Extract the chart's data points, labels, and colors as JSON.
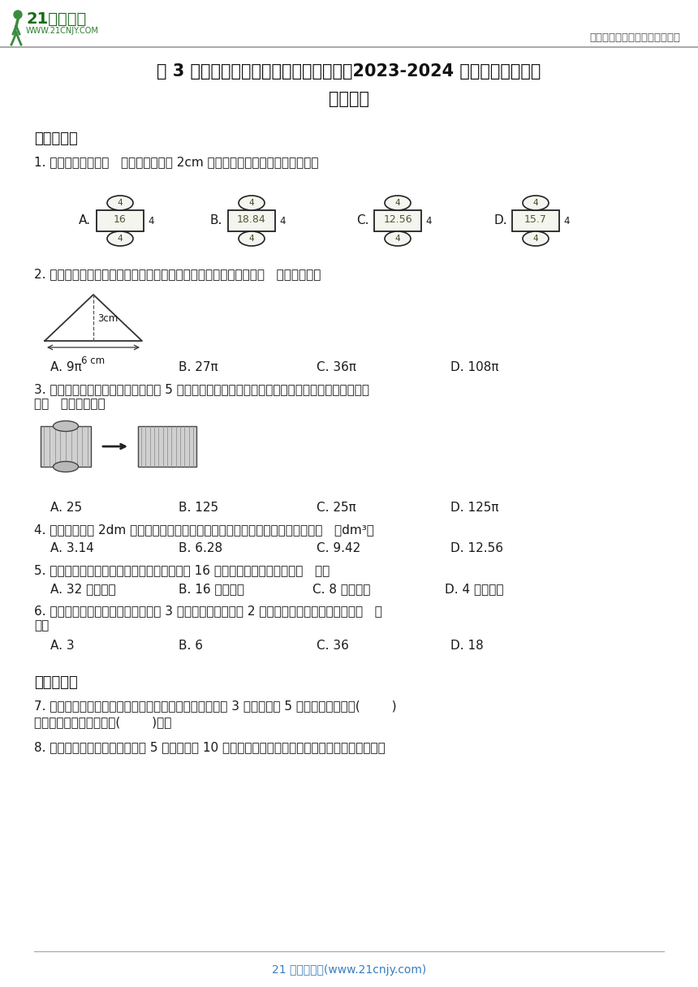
{
  "bg_color": "#ffffff",
  "header_right": "中小学教育资源及组卷应用平台",
  "title_line1": "第 3 单元圆柱与圆锥必考卷（单元测试）2023-2024 学年数学六年级下",
  "title_line2": "册人教版",
  "section1": "一、选择题",
  "q1": "1. 下面各图中，图（   ）是底面半径为 2cm 的圆柱的展开图。（单位：厘米）",
  "q2": "2. 如图，以等腰三角形的对称轴为轴旋转一周，形成的圆锥体积是（   ）立方厘米。",
  "q2_options": [
    "A. 9π",
    "B. 27π",
    "C. 36π",
    "D. 108π"
  ],
  "q3_line1": "3. 如图，圆柱从正面看，是一个边长 5 厘米的正方形，将这个圆柱切拼成一个长方体后，表面积增",
  "q3_line2": "加（   ）平方厘米。",
  "q3_options": [
    "A. 25",
    "B. 125",
    "C. 25π",
    "D. 125π"
  ],
  "q4": "4. 把一个棱长为 2dm 的正方体木料加工成一个最大的圆柱，这个圆柱的体积是（   ）dm³。",
  "q4_options": [
    "A. 3.14",
    "B. 6.28",
    "C. 9.42",
    "D. 12.56"
  ],
  "q5": "5. 一个圆锥和与它等底等高的圆柱的体积相差 16 立方厘米，圆锥的体积是（   ）。",
  "q5_options": [
    "A. 32 立方厘米",
    "B. 16 立方厘米",
    "C. 8 立方厘米",
    "D. 4 立方厘米"
  ],
  "q6_line1": "6. 一个圆柱的底面半径扩大到原来的 3 倍，高扩大到原来的 2 倍，它的体积就扩大到原来的（   ）",
  "q6_line2": "倍。",
  "q6_options": [
    "A. 3",
    "B. 6",
    "C. 36",
    "D. 18"
  ],
  "section2": "二、填空题",
  "q7_line1": "7. 做一个圆柱形汽油桶（接口处不计），它的底面半径是 3 分米，高是 5 分米，至少用铁皮(        )",
  "q7_line2": "平方分米，最多可装汽油(        )升。",
  "q8": "8. 如图，已知圆柱的底面半径是 5 厘米，高是 10 厘米，求这个圆柱的体积。小红没用体积公式直接",
  "footer": "21 世纪教育网(www.21cnjy.com)",
  "net_labels": [
    "A.",
    "B.",
    "C.",
    "D."
  ],
  "net_nums": [
    "16",
    "18.84",
    "12.56",
    "15.7"
  ],
  "logo_text1": "21世纪教育",
  "logo_text2": "WWW.21CNJY.COM"
}
